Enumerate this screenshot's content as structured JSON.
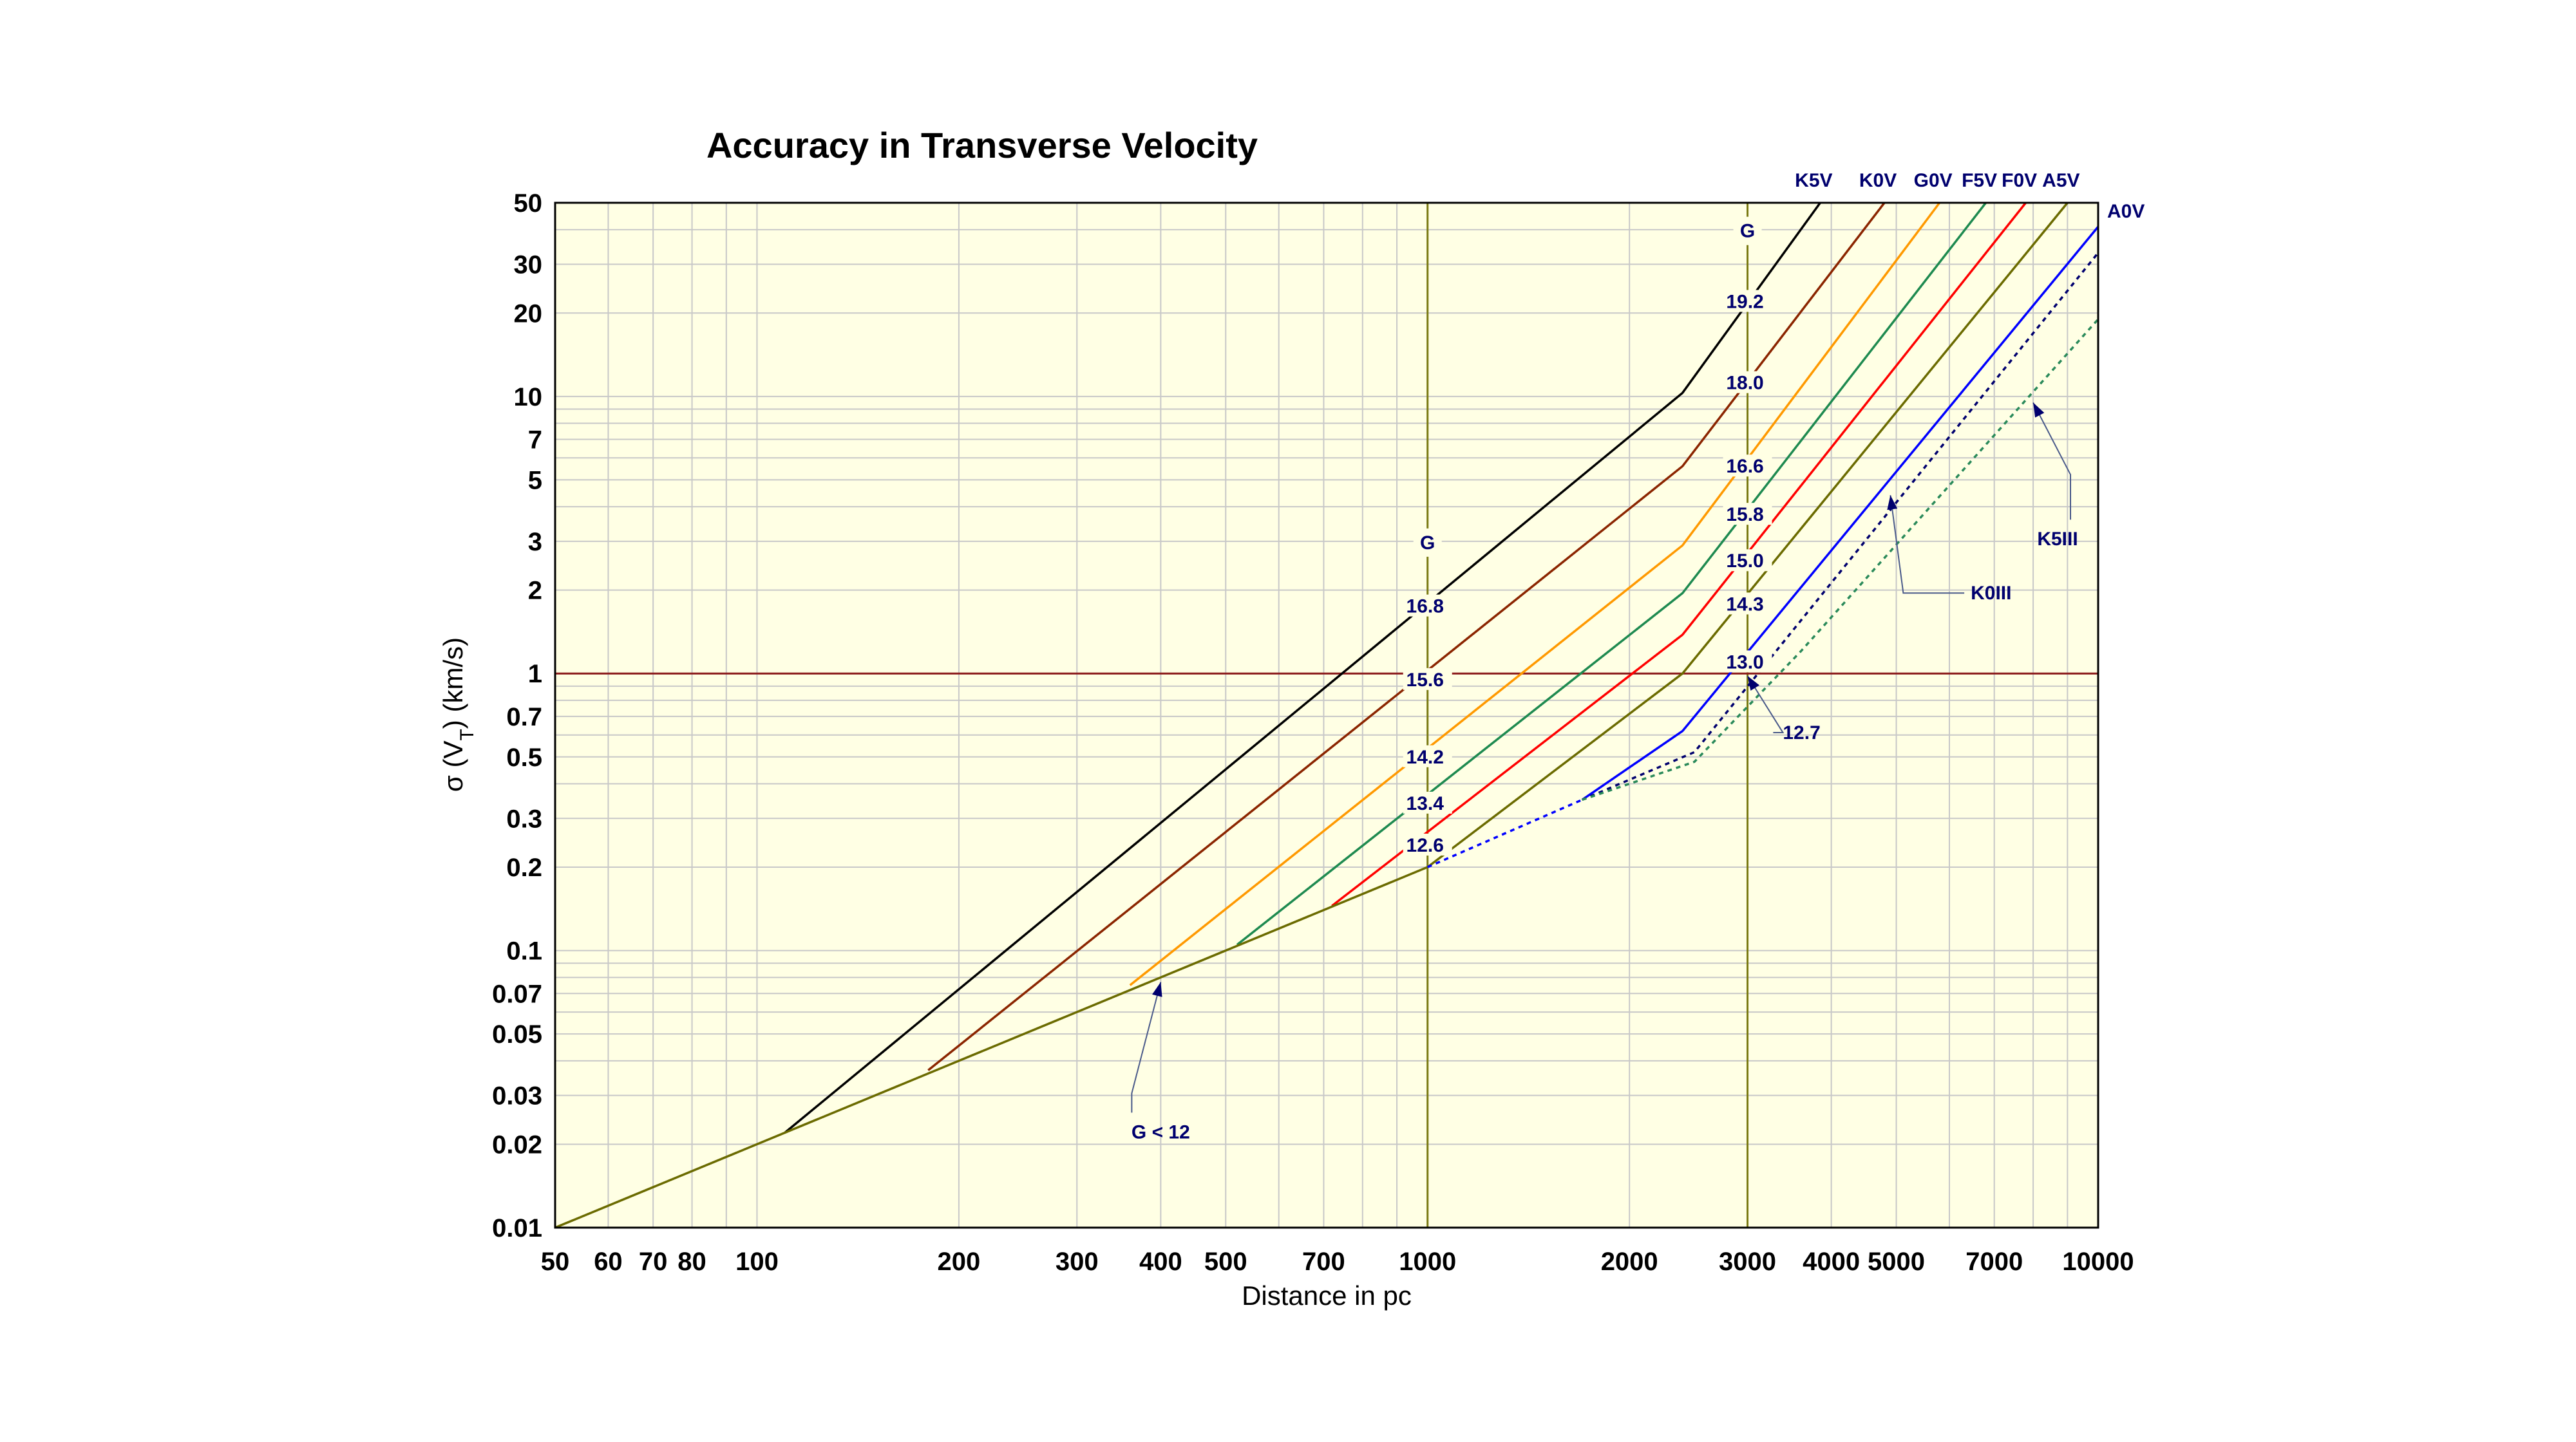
{
  "chart_data": {
    "type": "line",
    "title": "Accuracy in Transverse Velocity",
    "xlabel": "Distance in pc",
    "ylabel": "σ (V_T)  (km/s)",
    "ylabel_parts": {
      "sigma": "σ (V",
      "sub": "T",
      "rest": ")  (km/s)"
    },
    "x_scale": "log",
    "y_scale": "log",
    "xlim": [
      50,
      10000
    ],
    "ylim": [
      0.01,
      50
    ],
    "grid": true,
    "x_ticks": [
      {
        "v": 50,
        "label": "50"
      },
      {
        "v": 60,
        "label": "60"
      },
      {
        "v": 70,
        "label": "70"
      },
      {
        "v": 80,
        "label": "80"
      },
      {
        "v": 100,
        "label": "100"
      },
      {
        "v": 200,
        "label": "200"
      },
      {
        "v": 300,
        "label": "300"
      },
      {
        "v": 400,
        "label": "400"
      },
      {
        "v": 500,
        "label": "500"
      },
      {
        "v": 700,
        "label": "700"
      },
      {
        "v": 1000,
        "label": "1000"
      },
      {
        "v": 2000,
        "label": "2000"
      },
      {
        "v": 3000,
        "label": "3000"
      },
      {
        "v": 4000,
        "label": "4000"
      },
      {
        "v": 5000,
        "label": "5000"
      },
      {
        "v": 7000,
        "label": "7000"
      },
      {
        "v": 10000,
        "label": "10000"
      }
    ],
    "y_ticks": [
      {
        "v": 0.01,
        "label": "0.01"
      },
      {
        "v": 0.02,
        "label": "0.02"
      },
      {
        "v": 0.03,
        "label": "0.03"
      },
      {
        "v": 0.05,
        "label": "0.05"
      },
      {
        "v": 0.07,
        "label": "0.07"
      },
      {
        "v": 0.1,
        "label": "0.1"
      },
      {
        "v": 0.2,
        "label": "0.2"
      },
      {
        "v": 0.3,
        "label": "0.3"
      },
      {
        "v": 0.5,
        "label": "0.5"
      },
      {
        "v": 0.7,
        "label": "0.7"
      },
      {
        "v": 1,
        "label": "1"
      },
      {
        "v": 2,
        "label": "2"
      },
      {
        "v": 3,
        "label": "3"
      },
      {
        "v": 5,
        "label": "5"
      },
      {
        "v": 7,
        "label": "7"
      },
      {
        "v": 10,
        "label": "10"
      },
      {
        "v": 20,
        "label": "20"
      },
      {
        "v": 30,
        "label": "30"
      },
      {
        "v": 50,
        "label": "50"
      }
    ],
    "reference_lines": [
      {
        "orientation": "vertical",
        "value": 1000,
        "color": "#7a7a12",
        "label": "G"
      },
      {
        "orientation": "vertical",
        "value": 3000,
        "color": "#7a7a12",
        "label": "G"
      },
      {
        "orientation": "horizontal",
        "value": 1,
        "color": "#8b1a1a"
      }
    ],
    "series": [
      {
        "name": "K5V",
        "color": "#000000",
        "dashed": false,
        "x": [
          110,
          2400,
          3850
        ],
        "y": [
          0.022,
          10.3,
          50
        ]
      },
      {
        "name": "K0V",
        "color": "#8b2500",
        "dashed": false,
        "x": [
          180,
          2400,
          4800
        ],
        "y": [
          0.037,
          5.6,
          50
        ]
      },
      {
        "name": "G0V",
        "color": "#ff9900",
        "dashed": false,
        "x": [
          360,
          2400,
          5800
        ],
        "y": [
          0.075,
          2.9,
          50
        ]
      },
      {
        "name": "F5V",
        "color": "#1e8a50",
        "dashed": false,
        "x": [
          520,
          2400,
          6800
        ],
        "y": [
          0.105,
          1.95,
          50
        ]
      },
      {
        "name": "F0V",
        "color": "#ff0000",
        "dashed": false,
        "x": [
          720,
          2400,
          7800
        ],
        "y": [
          0.145,
          1.38,
          50
        ]
      },
      {
        "name": "A5V",
        "color": "#6b6b00",
        "dashed": false,
        "x": [
          50,
          1000,
          2400,
          9000
        ],
        "y": [
          0.01,
          0.2,
          1.0,
          50
        ]
      },
      {
        "name": "A0V",
        "color": "#0000ff",
        "dashed": false,
        "x": [
          1700,
          2400,
          10000
        ],
        "y": [
          0.35,
          0.62,
          41
        ]
      },
      {
        "name": "A0V-faint",
        "color": "#0000ff",
        "dashed": true,
        "x": [
          1000,
          1700
        ],
        "y": [
          0.2,
          0.35
        ]
      },
      {
        "name": "K0III",
        "color": "#00006e",
        "dashed": true,
        "x": [
          1700,
          2500,
          10000
        ],
        "y": [
          0.35,
          0.52,
          33
        ]
      },
      {
        "name": "K5III",
        "color": "#2a8a5a",
        "dashed": true,
        "x": [
          1700,
          2500,
          3600,
          10000
        ],
        "y": [
          0.35,
          0.48,
          1.2,
          19
        ]
      }
    ],
    "series_labels": [
      {
        "text": "K5V",
        "series": "K5V"
      },
      {
        "text": "K0V",
        "series": "K0V"
      },
      {
        "text": "G0V",
        "series": "G0V"
      },
      {
        "text": "F5V",
        "series": "F5V"
      },
      {
        "text": "F0V",
        "series": "F0V"
      },
      {
        "text": "A5V",
        "series": "A5V"
      },
      {
        "text": "A0V",
        "series": "A0V"
      }
    ],
    "annotations": {
      "g_magnitudes_1000": [
        {
          "label": "16.8",
          "y": 1.75
        },
        {
          "label": "15.6",
          "y": 0.95
        },
        {
          "label": "14.2",
          "y": 0.5
        },
        {
          "label": "13.4",
          "y": 0.34
        },
        {
          "label": "12.6",
          "y": 0.24
        }
      ],
      "g_magnitudes_3000": [
        {
          "label": "19.2",
          "y": 22
        },
        {
          "label": "18.0",
          "y": 11.2
        },
        {
          "label": "16.6",
          "y": 5.6
        },
        {
          "label": "15.8",
          "y": 3.75
        },
        {
          "label": "15.0",
          "y": 2.55
        },
        {
          "label": "14.3",
          "y": 1.78
        },
        {
          "label": "13.0",
          "y": 1.1
        }
      ],
      "callouts": [
        {
          "label": "G < 12",
          "label_x": 400,
          "label_y": 0.021,
          "tip_x": 400,
          "tip_y": 0.077
        },
        {
          "label": "12.7",
          "label_x": 3700,
          "label_y": 0.58,
          "tip_x": 3000,
          "tip_y": 0.98
        },
        {
          "label": "K0III",
          "label_x": 6600,
          "label_y": 1.85,
          "tip_x": 4900,
          "tip_y": 4.4
        },
        {
          "label": "K5III",
          "label_x": 8700,
          "label_y": 2.9,
          "tip_x": 8000,
          "tip_y": 9.5
        }
      ]
    }
  }
}
